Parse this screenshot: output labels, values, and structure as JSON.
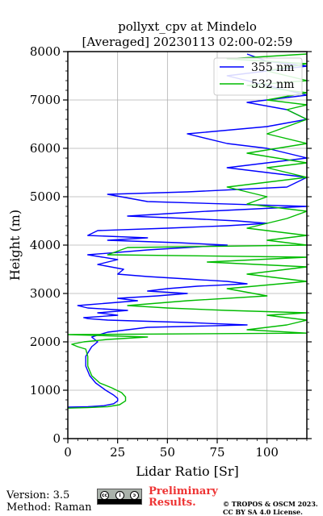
{
  "chart_data": {
    "type": "line",
    "title": "pollyxt_cpv at Mindelo",
    "subtitle": "[Averaged] 20230113 02:00-02:59",
    "xlabel": "Lidar Ratio [Sr]",
    "ylabel": "Height (m)",
    "xlim": [
      0,
      120
    ],
    "ylim": [
      0,
      8000
    ],
    "xticks": [
      0,
      25,
      50,
      75,
      100
    ],
    "yticks": [
      0,
      1000,
      2000,
      3000,
      4000,
      5000,
      6000,
      7000,
      8000
    ],
    "grid": true,
    "legend_position": "top-right",
    "series": [
      {
        "name": "355 nm",
        "color": "#0000ff",
        "points": [
          [
            0,
            650
          ],
          [
            10,
            660
          ],
          [
            18,
            680
          ],
          [
            23,
            720
          ],
          [
            25,
            780
          ],
          [
            25,
            830
          ],
          [
            23,
            900
          ],
          [
            19,
            1000
          ],
          [
            14,
            1150
          ],
          [
            11,
            1300
          ],
          [
            9,
            1500
          ],
          [
            9,
            1700
          ],
          [
            12,
            1900
          ],
          [
            15,
            2000
          ],
          [
            12,
            2100
          ],
          [
            20,
            2200
          ],
          [
            30,
            2250
          ],
          [
            40,
            2300
          ],
          [
            90,
            2350
          ],
          [
            60,
            2400
          ],
          [
            20,
            2450
          ],
          [
            10,
            2480
          ],
          [
            8,
            2500
          ],
          [
            25,
            2550
          ],
          [
            15,
            2600
          ],
          [
            30,
            2650
          ],
          [
            10,
            2700
          ],
          [
            5,
            2750
          ],
          [
            20,
            2800
          ],
          [
            35,
            2850
          ],
          [
            25,
            2900
          ],
          [
            45,
            2950
          ],
          [
            60,
            3000
          ],
          [
            40,
            3050
          ],
          [
            50,
            3100
          ],
          [
            65,
            3150
          ],
          [
            90,
            3200
          ],
          [
            80,
            3250
          ],
          [
            60,
            3300
          ],
          [
            40,
            3350
          ],
          [
            25,
            3400
          ],
          [
            28,
            3500
          ],
          [
            15,
            3600
          ],
          [
            25,
            3700
          ],
          [
            10,
            3800
          ],
          [
            40,
            3900
          ],
          [
            60,
            3950
          ],
          [
            80,
            4000
          ],
          [
            55,
            4050
          ],
          [
            20,
            4100
          ],
          [
            40,
            4150
          ],
          [
            10,
            4200
          ],
          [
            15,
            4300
          ],
          [
            50,
            4350
          ],
          [
            80,
            4400
          ],
          [
            100,
            4450
          ],
          [
            85,
            4500
          ],
          [
            60,
            4550
          ],
          [
            30,
            4600
          ],
          [
            50,
            4650
          ],
          [
            70,
            4700
          ],
          [
            120,
            4800
          ],
          [
            40,
            4900
          ],
          [
            20,
            5050
          ],
          [
            60,
            5100
          ],
          [
            110,
            5200
          ],
          [
            120,
            5400
          ],
          [
            100,
            5500
          ],
          [
            80,
            5600
          ],
          [
            120,
            5800
          ],
          [
            100,
            6000
          ],
          [
            80,
            6100
          ],
          [
            60,
            6300
          ],
          [
            100,
            6450
          ],
          [
            120,
            6600
          ],
          [
            110,
            6800
          ],
          [
            90,
            6950
          ],
          [
            120,
            7100
          ],
          [
            100,
            7300
          ],
          [
            80,
            7500
          ],
          [
            120,
            7700
          ],
          [
            100,
            7800
          ],
          [
            90,
            7950
          ]
        ]
      },
      {
        "name": "532 nm",
        "color": "#00bb00",
        "points": [
          [
            0,
            630
          ],
          [
            10,
            640
          ],
          [
            20,
            660
          ],
          [
            26,
            700
          ],
          [
            29,
            780
          ],
          [
            29,
            860
          ],
          [
            27,
            950
          ],
          [
            22,
            1050
          ],
          [
            16,
            1150
          ],
          [
            12,
            1300
          ],
          [
            10,
            1500
          ],
          [
            10,
            1700
          ],
          [
            9,
            1850
          ],
          [
            5,
            1900
          ],
          [
            2,
            1950
          ],
          [
            8,
            2000
          ],
          [
            20,
            2050
          ],
          [
            40,
            2100
          ],
          [
            0,
            2150
          ],
          [
            120,
            2180
          ],
          [
            90,
            2250
          ],
          [
            110,
            2350
          ],
          [
            120,
            2450
          ],
          [
            100,
            2550
          ],
          [
            120,
            2600
          ],
          [
            80,
            2650
          ],
          [
            50,
            2700
          ],
          [
            30,
            2750
          ],
          [
            60,
            2850
          ],
          [
            100,
            2950
          ],
          [
            80,
            3100
          ],
          [
            120,
            3250
          ],
          [
            90,
            3400
          ],
          [
            120,
            3550
          ],
          [
            70,
            3650
          ],
          [
            120,
            3750
          ],
          [
            20,
            3800
          ],
          [
            30,
            3950
          ],
          [
            120,
            4000
          ],
          [
            100,
            4100
          ],
          [
            120,
            4200
          ],
          [
            90,
            4350
          ],
          [
            110,
            4550
          ],
          [
            120,
            4700
          ],
          [
            90,
            4850
          ],
          [
            100,
            5000
          ],
          [
            80,
            5200
          ],
          [
            120,
            5400
          ],
          [
            100,
            5600
          ],
          [
            120,
            5700
          ],
          [
            90,
            5900
          ],
          [
            120,
            6100
          ],
          [
            100,
            6300
          ],
          [
            120,
            6600
          ],
          [
            110,
            6800
          ],
          [
            120,
            6900
          ],
          [
            100,
            7000
          ],
          [
            120,
            7150
          ],
          [
            90,
            7300
          ],
          [
            120,
            7400
          ],
          [
            100,
            7600
          ],
          [
            120,
            7750
          ],
          [
            80,
            7850
          ],
          [
            120,
            7950
          ]
        ]
      }
    ]
  },
  "footer": {
    "version": "Version: 3.5",
    "method": "Method: Raman",
    "preliminary_line1": "Preliminary",
    "preliminary_line2": "Results.",
    "copyright_line1": "© TROPOS & OSCM 2023.",
    "copyright_line2": "CC BY SA 4.0 License."
  },
  "colors": {
    "series_355": "#0000ff",
    "series_532": "#00bb00",
    "preliminary_text": "#ee3333"
  }
}
